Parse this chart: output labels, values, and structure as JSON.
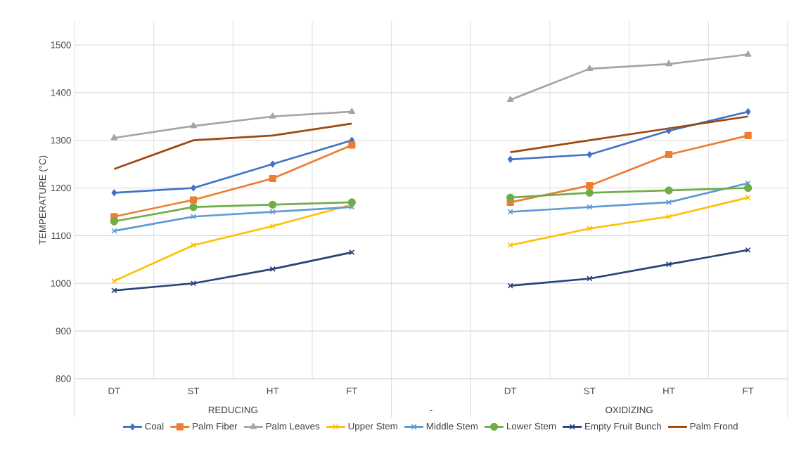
{
  "chart_data": {
    "type": "line",
    "ylabel": "TEMPERATURE (°C)",
    "categories": [
      "DT",
      "ST",
      "HT",
      "FT",
      null,
      "DT",
      "ST",
      "HT",
      "FT"
    ],
    "annotations": [
      "REDUCING",
      "-",
      "OXIDIZING"
    ],
    "ylim": [
      800,
      1550
    ],
    "yticks": [
      800,
      900,
      1000,
      1100,
      1200,
      1300,
      1400,
      1500
    ],
    "grid": true,
    "legend": "bottom",
    "series": [
      {
        "name": "Coal",
        "color": "#4472c4",
        "marker": "diamond",
        "values": [
          1190,
          1200,
          1250,
          1300,
          null,
          1260,
          1270,
          1320,
          1360
        ]
      },
      {
        "name": "Palm Fiber",
        "color": "#ed7d31",
        "marker": "square",
        "values": [
          1140,
          1175,
          1220,
          1290,
          null,
          1170,
          1205,
          1270,
          1310
        ]
      },
      {
        "name": "Palm Leaves",
        "color": "#a5a5a5",
        "marker": "triangle",
        "values": [
          1305,
          1330,
          1350,
          1360,
          null,
          1385,
          1450,
          1460,
          1480
        ]
      },
      {
        "name": "Upper Stem",
        "color": "#ffc000",
        "marker": "cross",
        "values": [
          1005,
          1080,
          1120,
          1165,
          null,
          1080,
          1115,
          1140,
          1180
        ]
      },
      {
        "name": "Middle Stem",
        "color": "#5b9bd5",
        "marker": "cross",
        "values": [
          1110,
          1140,
          1150,
          1160,
          null,
          1150,
          1160,
          1170,
          1210
        ]
      },
      {
        "name": "Lower Stem",
        "color": "#70ad47",
        "marker": "circle",
        "values": [
          1130,
          1160,
          1165,
          1170,
          null,
          1180,
          1190,
          1195,
          1200
        ]
      },
      {
        "name": "Empty Fruit Bunch",
        "color": "#264478",
        "marker": "cross",
        "values": [
          985,
          1000,
          1030,
          1065,
          null,
          995,
          1010,
          1040,
          1070
        ]
      },
      {
        "name": "Palm Frond",
        "color": "#9e480e",
        "marker": "none",
        "values": [
          1240,
          1300,
          1310,
          1335,
          null,
          1275,
          1300,
          1325,
          1350
        ]
      }
    ]
  }
}
